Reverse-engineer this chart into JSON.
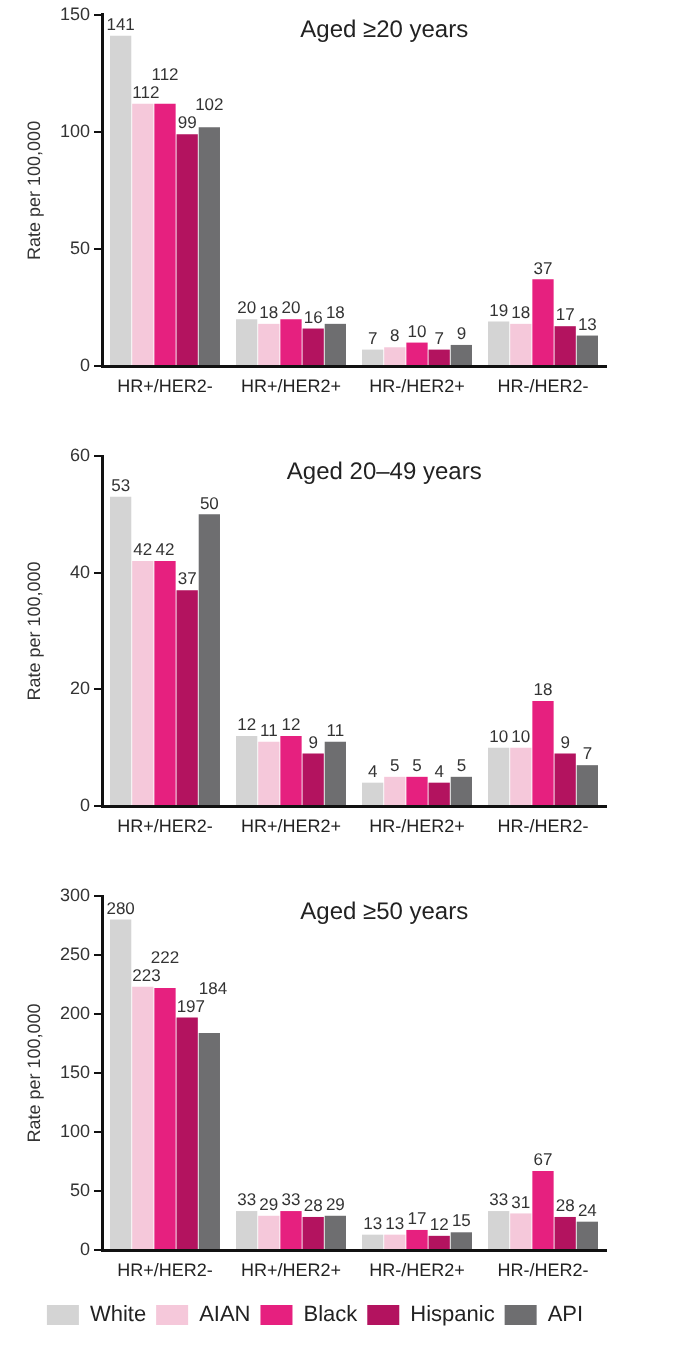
{
  "chart_data": [
    {
      "type": "bar",
      "title": "Aged ≥20 years",
      "ylabel": "Rate per 100,000",
      "categories": [
        "HR+/HER2-",
        "HR+/HER2+",
        "HR-/HER2+",
        "HR-/HER2-"
      ],
      "series": [
        {
          "color": "#d4d4d4",
          "values": [
            141,
            20,
            7,
            19
          ]
        },
        {
          "color": "#f5c8da",
          "values": [
            112,
            18,
            8,
            18
          ]
        },
        {
          "color": "#e6207f",
          "values": [
            112,
            20,
            10,
            37
          ]
        },
        {
          "color": "#b3135f",
          "values": [
            99,
            16,
            7,
            17
          ]
        },
        {
          "color": "#6e6e70",
          "values": [
            102,
            18,
            9,
            13
          ]
        }
      ],
      "ylim": [
        0,
        150
      ],
      "yticks": [
        0,
        50,
        100,
        150
      ],
      "data_labels": true
    },
    {
      "type": "bar",
      "title": "Aged 20–49 years",
      "ylabel": "Rate per 100,000",
      "categories": [
        "HR+/HER2-",
        "HR+/HER2+",
        "HR-/HER2+",
        "HR-/HER2-"
      ],
      "series": [
        {
          "color": "#d4d4d4",
          "values": [
            53,
            12,
            4,
            10
          ]
        },
        {
          "color": "#f5c8da",
          "values": [
            42,
            11,
            5,
            10
          ]
        },
        {
          "color": "#e6207f",
          "values": [
            42,
            12,
            5,
            18
          ]
        },
        {
          "color": "#b3135f",
          "values": [
            37,
            9,
            4,
            9
          ]
        },
        {
          "color": "#6e6e70",
          "values": [
            50,
            11,
            5,
            7
          ]
        }
      ],
      "ylim": [
        0,
        60
      ],
      "yticks": [
        0,
        20,
        40,
        60
      ],
      "data_labels": true
    },
    {
      "type": "bar",
      "title": "Aged ≥50 years",
      "ylabel": "Rate per 100,000",
      "categories": [
        "HR+/HER2-",
        "HR+/HER2+",
        "HR-/HER2+",
        "HR-/HER2-"
      ],
      "series": [
        {
          "name": "White",
          "color": "#d4d4d4",
          "values": [
            280,
            33,
            13,
            33
          ]
        },
        {
          "name": "AIAN",
          "color": "#f5c8da",
          "values": [
            223,
            29,
            13,
            31
          ]
        },
        {
          "name": "Black",
          "color": "#e6207f",
          "values": [
            222,
            33,
            17,
            67
          ]
        },
        {
          "name": "Hispanic",
          "color": "#b3135f",
          "values": [
            197,
            28,
            12,
            28
          ]
        },
        {
          "name": "API",
          "color": "#6e6e70",
          "values": [
            184,
            29,
            15,
            24
          ]
        }
      ],
      "ylim": [
        0,
        300
      ],
      "yticks": [
        0,
        50,
        100,
        150,
        200,
        250,
        300
      ],
      "data_labels": true,
      "legend": "bottom"
    }
  ]
}
